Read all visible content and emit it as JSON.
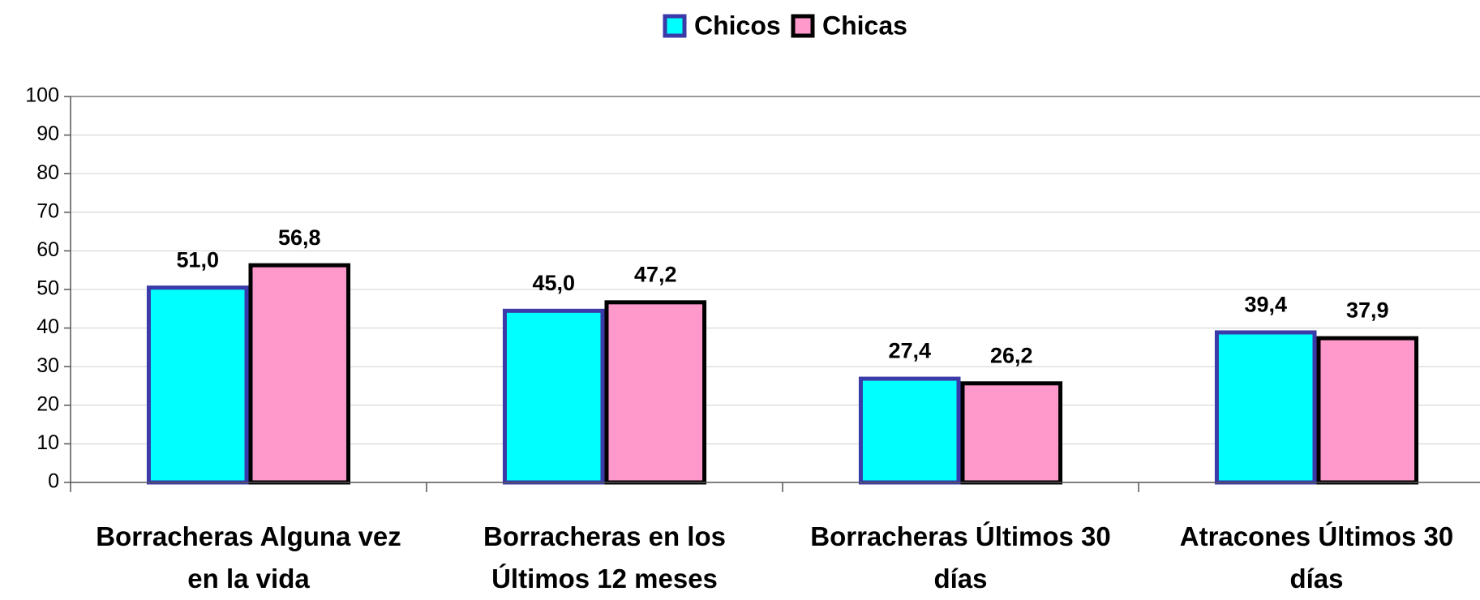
{
  "chart_data": {
    "type": "bar",
    "categories": [
      "Borracheras Alguna vez en la vida",
      "Borracheras en los Últimos 12 meses",
      "Borracheras Últimos 30 días",
      "Atracones Últimos 30 días"
    ],
    "series": [
      {
        "name": "Chicos",
        "color": "#00ffff",
        "edge_color": "#3a3aa8",
        "values": [
          51.0,
          45.0,
          27.4,
          39.4
        ],
        "value_labels": [
          "51,0",
          "45,0",
          "27,4",
          "39,4"
        ]
      },
      {
        "name": "Chicas",
        "color": "#ff99cc",
        "edge_color": "#000000",
        "values": [
          56.8,
          47.2,
          26.2,
          37.9
        ],
        "value_labels": [
          "56,8",
          "47,2",
          "26,2",
          "37,9"
        ]
      }
    ],
    "ylim": [
      0,
      100
    ],
    "yticks": [
      0,
      10,
      20,
      30,
      40,
      50,
      60,
      70,
      80,
      90,
      100
    ],
    "grid": true,
    "legend": "top"
  }
}
